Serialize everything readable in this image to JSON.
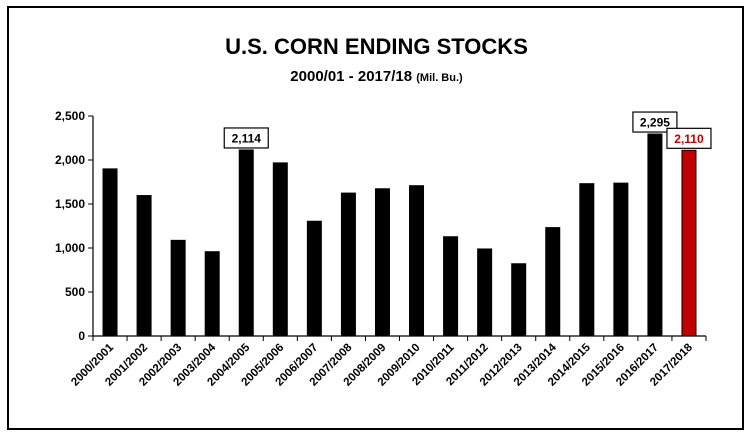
{
  "colors": {
    "bar": "#000000",
    "highlight_bar": "#c00000",
    "highlight_label": "#c00000",
    "axis": "#000000",
    "grid": "#000000",
    "background": "#ffffff"
  },
  "chart_data": {
    "type": "bar",
    "title": "U.S. CORN ENDING STOCKS",
    "subtitle": "2000/01 - 2017/18",
    "subtitle_unit": "(Mil. Bu.)",
    "xlabel": "",
    "ylabel": "",
    "ylim": [
      0,
      2500
    ],
    "yticks": [
      0,
      500,
      1000,
      1500,
      2000,
      2500
    ],
    "ytick_labels": [
      "0",
      "500",
      "1,000",
      "1,500",
      "2,000",
      "2,500"
    ],
    "grid": false,
    "legend": "none",
    "categories": [
      "2000/2001",
      "2001/2002",
      "2002/2003",
      "2003/2004",
      "2004/2005",
      "2005/2006",
      "2006/2007",
      "2007/2008",
      "2008/2009",
      "2009/2010",
      "2010/2011",
      "2011/2012",
      "2012/2013",
      "2013/2014",
      "2014/2015",
      "2015/2016",
      "2016/2017",
      "2017/2018"
    ],
    "values": [
      1899,
      1596,
      1087,
      958,
      2114,
      1967,
      1304,
      1624,
      1673,
      1708,
      1128,
      989,
      821,
      1232,
      1731,
      1737,
      2295,
      2110
    ],
    "highlight_index": 17,
    "data_labels": [
      {
        "index": 4,
        "text": "2,114"
      },
      {
        "index": 16,
        "text": "2,295"
      },
      {
        "index": 17,
        "text": "2,110"
      }
    ]
  }
}
